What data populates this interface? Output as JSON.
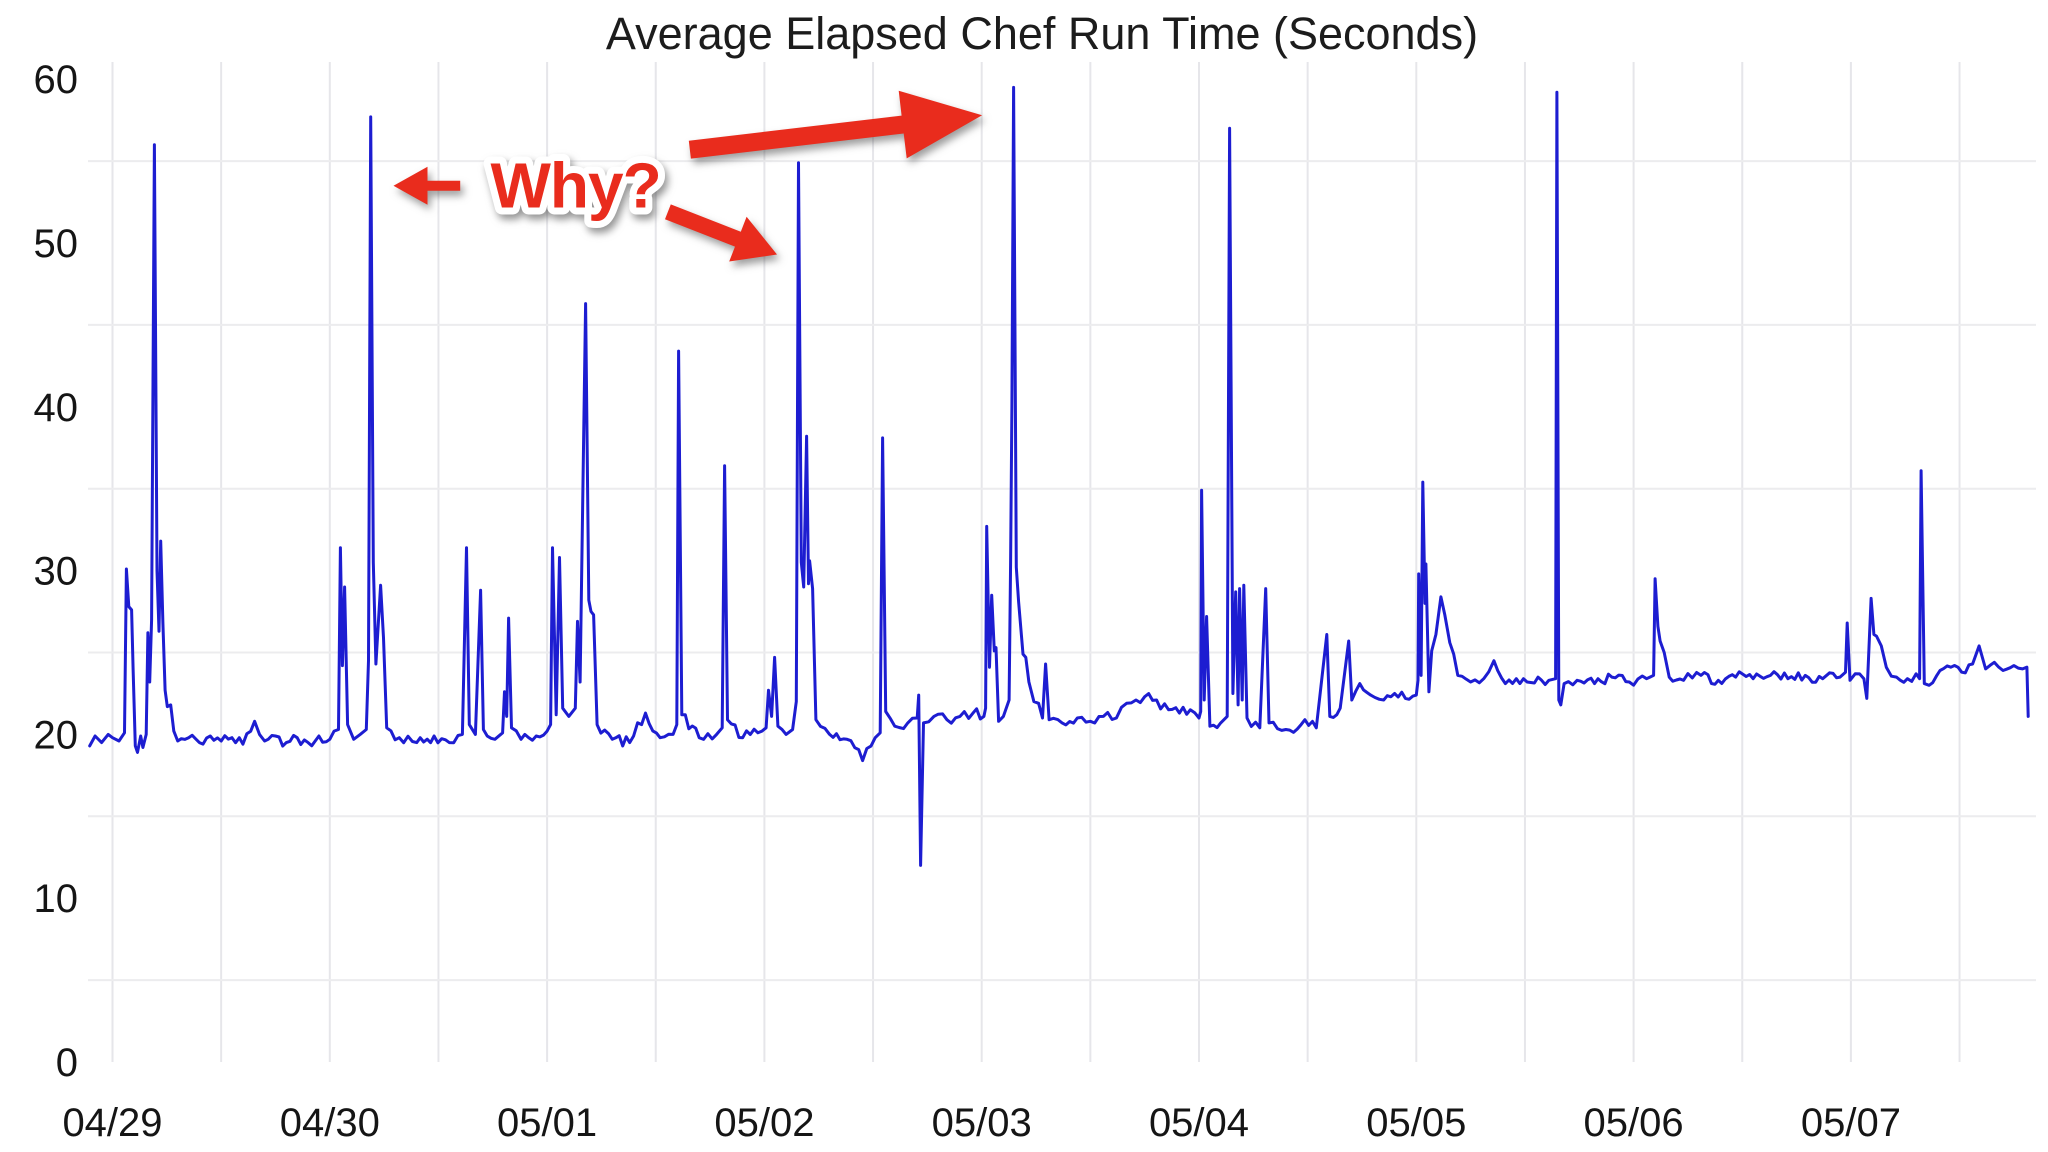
{
  "chart_data": {
    "type": "line",
    "title": "Average Elapsed Chef Run Time (Seconds)",
    "ylabel": "",
    "xlabel": "",
    "ylim": [
      0,
      60
    ],
    "y_ticks": [
      0,
      10,
      20,
      30,
      40,
      50,
      60
    ],
    "y_gridlines_at": [
      5,
      15,
      25,
      35,
      45,
      55
    ],
    "x_tick_labels": [
      "04/29",
      "04/30",
      "05/01",
      "05/02",
      "05/03",
      "05/04",
      "05/05",
      "05/06",
      "05/07"
    ],
    "x_tick_days": [
      0,
      1,
      2,
      3,
      4,
      5,
      6,
      7,
      8
    ],
    "x_minor_grid_step_days": 0.5,
    "x_range_days": [
      -0.105,
      8.82
    ],
    "grid": "on",
    "legend_position": "none",
    "series": [
      {
        "name": "average-elapsed-chef-run-time",
        "color": "#1d1dd1",
        "points": [
          [
            -0.105,
            19.3
          ],
          [
            -0.08,
            19.9
          ],
          [
            -0.05,
            19.5
          ],
          [
            -0.02,
            20.0
          ],
          [
            0.0,
            19.8
          ],
          [
            0.03,
            19.6
          ],
          [
            0.055,
            20.1
          ],
          [
            0.064,
            30.1
          ],
          [
            0.075,
            27.8
          ],
          [
            0.088,
            27.6
          ],
          [
            0.095,
            24.0
          ],
          [
            0.105,
            19.3
          ],
          [
            0.115,
            18.9
          ],
          [
            0.13,
            19.9
          ],
          [
            0.14,
            19.2
          ],
          [
            0.155,
            20.0
          ],
          [
            0.163,
            26.2
          ],
          [
            0.171,
            23.2
          ],
          [
            0.18,
            27.0
          ],
          [
            0.193,
            56.0
          ],
          [
            0.205,
            30.0
          ],
          [
            0.214,
            26.3
          ],
          [
            0.222,
            31.8
          ],
          [
            0.232,
            26.8
          ],
          [
            0.242,
            22.7
          ],
          [
            0.252,
            21.7
          ],
          [
            0.268,
            21.8
          ],
          [
            0.282,
            20.2
          ],
          [
            0.3,
            19.6
          ],
          [
            0.35,
            19.8
          ],
          [
            0.4,
            19.5
          ],
          [
            0.45,
            19.9
          ],
          [
            0.5,
            19.6
          ],
          [
            0.55,
            19.8
          ],
          [
            0.6,
            19.4
          ],
          [
            0.654,
            20.8
          ],
          [
            0.7,
            19.6
          ],
          [
            0.75,
            19.9
          ],
          [
            0.8,
            19.5
          ],
          [
            0.85,
            19.8
          ],
          [
            0.9,
            19.5
          ],
          [
            0.95,
            19.9
          ],
          [
            1.0,
            19.7
          ],
          [
            1.04,
            20.3
          ],
          [
            1.049,
            31.4
          ],
          [
            1.058,
            24.2
          ],
          [
            1.068,
            29.0
          ],
          [
            1.082,
            20.6
          ],
          [
            1.11,
            19.7
          ],
          [
            1.14,
            20.0
          ],
          [
            1.168,
            20.3
          ],
          [
            1.178,
            24.5
          ],
          [
            1.188,
            57.7
          ],
          [
            1.2,
            30.5
          ],
          [
            1.212,
            24.3
          ],
          [
            1.234,
            29.1
          ],
          [
            1.247,
            25.9
          ],
          [
            1.262,
            20.4
          ],
          [
            1.32,
            19.8
          ],
          [
            1.4,
            19.5
          ],
          [
            1.48,
            19.9
          ],
          [
            1.55,
            19.5
          ],
          [
            1.61,
            20.0
          ],
          [
            1.629,
            31.4
          ],
          [
            1.642,
            20.6
          ],
          [
            1.67,
            20.0
          ],
          [
            1.694,
            28.8
          ],
          [
            1.707,
            20.3
          ],
          [
            1.76,
            19.7
          ],
          [
            1.795,
            20.1
          ],
          [
            1.804,
            22.6
          ],
          [
            1.814,
            21.1
          ],
          [
            1.823,
            27.1
          ],
          [
            1.836,
            20.4
          ],
          [
            1.88,
            19.7
          ],
          [
            1.95,
            19.9
          ],
          [
            2.0,
            20.2
          ],
          [
            2.016,
            20.6
          ],
          [
            2.025,
            31.4
          ],
          [
            2.042,
            21.2
          ],
          [
            2.057,
            30.8
          ],
          [
            2.072,
            21.6
          ],
          [
            2.1,
            21.1
          ],
          [
            2.13,
            21.6
          ],
          [
            2.14,
            26.9
          ],
          [
            2.152,
            23.2
          ],
          [
            2.177,
            46.3
          ],
          [
            2.192,
            28.2
          ],
          [
            2.202,
            27.5
          ],
          [
            2.214,
            27.3
          ],
          [
            2.23,
            20.6
          ],
          [
            2.3,
            19.7
          ],
          [
            2.38,
            19.5
          ],
          [
            2.453,
            21.3
          ],
          [
            2.52,
            19.8
          ],
          [
            2.58,
            20.0
          ],
          [
            2.597,
            20.6
          ],
          [
            2.605,
            43.4
          ],
          [
            2.62,
            21.2
          ],
          [
            2.7,
            19.8
          ],
          [
            2.78,
            20.0
          ],
          [
            2.806,
            20.4
          ],
          [
            2.817,
            36.4
          ],
          [
            2.83,
            20.9
          ],
          [
            2.9,
            19.8
          ],
          [
            2.97,
            20.1
          ],
          [
            3.008,
            20.4
          ],
          [
            3.019,
            22.7
          ],
          [
            3.033,
            21.1
          ],
          [
            3.047,
            24.7
          ],
          [
            3.062,
            20.5
          ],
          [
            3.1,
            20.0
          ],
          [
            3.13,
            20.3
          ],
          [
            3.147,
            22.0
          ],
          [
            3.157,
            54.9
          ],
          [
            3.17,
            30.5
          ],
          [
            3.181,
            29.0
          ],
          [
            3.194,
            38.2
          ],
          [
            3.203,
            29.2
          ],
          [
            3.208,
            30.6
          ],
          [
            3.222,
            28.9
          ],
          [
            3.237,
            20.9
          ],
          [
            3.3,
            20.0
          ],
          [
            3.38,
            19.7
          ],
          [
            3.452,
            18.4
          ],
          [
            3.51,
            19.8
          ],
          [
            3.533,
            20.1
          ],
          [
            3.544,
            38.1
          ],
          [
            3.558,
            21.4
          ],
          [
            3.6,
            20.5
          ],
          [
            3.66,
            20.7
          ],
          [
            3.703,
            21.0
          ],
          [
            3.71,
            22.4
          ],
          [
            3.719,
            12.0
          ],
          [
            3.732,
            20.7
          ],
          [
            3.78,
            21.1
          ],
          [
            3.84,
            20.9
          ],
          [
            3.9,
            21.1
          ],
          [
            3.96,
            21.3
          ],
          [
            4.01,
            21.1
          ],
          [
            4.018,
            21.6
          ],
          [
            4.023,
            32.7
          ],
          [
            4.036,
            24.1
          ],
          [
            4.046,
            28.5
          ],
          [
            4.058,
            25.1
          ],
          [
            4.066,
            25.3
          ],
          [
            4.078,
            20.8
          ],
          [
            4.1,
            21.1
          ],
          [
            4.126,
            22.1
          ],
          [
            4.133,
            30.5
          ],
          [
            4.139,
            40.0
          ],
          [
            4.147,
            59.5
          ],
          [
            4.159,
            30.2
          ],
          [
            4.17,
            28.1
          ],
          [
            4.19,
            24.9
          ],
          [
            4.203,
            24.7
          ],
          [
            4.217,
            23.2
          ],
          [
            4.24,
            22.0
          ],
          [
            4.262,
            21.9
          ],
          [
            4.28,
            21.0
          ],
          [
            4.294,
            24.3
          ],
          [
            4.31,
            20.9
          ],
          [
            4.37,
            20.7
          ],
          [
            4.44,
            21.0
          ],
          [
            4.5,
            20.8
          ],
          [
            4.56,
            21.1
          ],
          [
            4.62,
            21.0
          ],
          [
            4.667,
            21.9
          ],
          [
            4.71,
            22.1
          ],
          [
            4.75,
            22.3
          ],
          [
            4.805,
            22.1
          ],
          [
            4.86,
            21.5
          ],
          [
            4.91,
            21.3
          ],
          [
            4.96,
            21.5
          ],
          [
            5.0,
            21.0
          ],
          [
            5.008,
            21.4
          ],
          [
            5.012,
            34.9
          ],
          [
            5.024,
            22.1
          ],
          [
            5.035,
            27.2
          ],
          [
            5.05,
            20.5
          ],
          [
            5.1,
            20.7
          ],
          [
            5.13,
            21.1
          ],
          [
            5.141,
            57.0
          ],
          [
            5.156,
            22.5
          ],
          [
            5.169,
            28.7
          ],
          [
            5.18,
            21.8
          ],
          [
            5.187,
            28.9
          ],
          [
            5.199,
            22.1
          ],
          [
            5.206,
            29.1
          ],
          [
            5.221,
            21.0
          ],
          [
            5.28,
            20.4
          ],
          [
            5.307,
            28.9
          ],
          [
            5.322,
            20.7
          ],
          [
            5.4,
            20.3
          ],
          [
            5.47,
            20.6
          ],
          [
            5.54,
            20.4
          ],
          [
            5.588,
            26.1
          ],
          [
            5.602,
            21.1
          ],
          [
            5.65,
            21.6
          ],
          [
            5.689,
            25.7
          ],
          [
            5.703,
            22.1
          ],
          [
            5.74,
            23.1
          ],
          [
            5.79,
            22.4
          ],
          [
            5.85,
            22.1
          ],
          [
            5.9,
            22.5
          ],
          [
            5.95,
            22.2
          ],
          [
            6.0,
            22.4
          ],
          [
            6.008,
            23.3
          ],
          [
            6.011,
            29.8
          ],
          [
            6.022,
            23.6
          ],
          [
            6.03,
            35.4
          ],
          [
            6.04,
            28.0
          ],
          [
            6.044,
            30.4
          ],
          [
            6.058,
            22.6
          ],
          [
            6.071,
            25.1
          ],
          [
            6.09,
            26.1
          ],
          [
            6.113,
            28.4
          ],
          [
            6.131,
            27.3
          ],
          [
            6.154,
            25.6
          ],
          [
            6.172,
            24.9
          ],
          [
            6.191,
            23.6
          ],
          [
            6.25,
            23.2
          ],
          [
            6.31,
            23.4
          ],
          [
            6.357,
            24.5
          ],
          [
            6.41,
            23.1
          ],
          [
            6.46,
            23.4
          ],
          [
            6.51,
            23.2
          ],
          [
            6.56,
            23.5
          ],
          [
            6.61,
            23.3
          ],
          [
            6.641,
            23.4
          ],
          [
            6.647,
            59.2
          ],
          [
            6.656,
            22.1
          ],
          [
            6.665,
            21.8
          ],
          [
            6.68,
            23.1
          ],
          [
            6.74,
            23.3
          ],
          [
            6.82,
            23.1
          ],
          [
            6.9,
            23.5
          ],
          [
            6.98,
            23.2
          ],
          [
            7.06,
            23.4
          ],
          [
            7.092,
            23.6
          ],
          [
            7.099,
            29.5
          ],
          [
            7.112,
            26.6
          ],
          [
            7.122,
            25.7
          ],
          [
            7.141,
            25.0
          ],
          [
            7.164,
            23.5
          ],
          [
            7.23,
            23.3
          ],
          [
            7.31,
            23.6
          ],
          [
            7.39,
            23.3
          ],
          [
            7.47,
            23.5
          ],
          [
            7.55,
            23.4
          ],
          [
            7.63,
            23.6
          ],
          [
            7.71,
            23.4
          ],
          [
            7.79,
            23.6
          ],
          [
            7.87,
            23.4
          ],
          [
            7.95,
            23.5
          ],
          [
            7.975,
            23.8
          ],
          [
            7.983,
            26.8
          ],
          [
            7.996,
            23.3
          ],
          [
            8.02,
            23.7
          ],
          [
            8.06,
            23.4
          ],
          [
            8.073,
            22.2
          ],
          [
            8.093,
            28.3
          ],
          [
            8.106,
            26.1
          ],
          [
            8.118,
            26.0
          ],
          [
            8.14,
            25.4
          ],
          [
            8.163,
            24.1
          ],
          [
            8.21,
            23.5
          ],
          [
            8.26,
            23.4
          ],
          [
            8.3,
            23.7
          ],
          [
            8.316,
            23.4
          ],
          [
            8.323,
            36.1
          ],
          [
            8.338,
            23.1
          ],
          [
            8.36,
            23.0
          ],
          [
            8.41,
            23.9
          ],
          [
            8.46,
            24.1
          ],
          [
            8.51,
            23.8
          ],
          [
            8.56,
            24.3
          ],
          [
            8.59,
            25.4
          ],
          [
            8.62,
            24.0
          ],
          [
            8.66,
            24.4
          ],
          [
            8.7,
            23.9
          ],
          [
            8.75,
            24.2
          ],
          [
            8.79,
            24.0
          ],
          [
            8.81,
            24.1
          ],
          [
            8.816,
            21.1
          ]
        ],
        "baseline_noise_amplitude": 0.35
      }
    ],
    "annotations": {
      "text": {
        "label": "Why?",
        "day": 2.131,
        "value": 53.5,
        "color": "#e92c1d",
        "outline_color": "#ffffff"
      },
      "arrows": [
        {
          "name": "arrow-left",
          "style": "thin",
          "color": "#e92c1d",
          "tail": {
            "day": 1.6,
            "value": 53.5
          },
          "tip": {
            "day": 1.293,
            "value": 53.5
          }
        },
        {
          "name": "arrow-long",
          "style": "long",
          "color": "#e92c1d",
          "tail": {
            "day": 2.657,
            "value": 55.7
          },
          "tip": {
            "day": 4.002,
            "value": 57.8
          }
        },
        {
          "name": "arrow-short",
          "style": "short",
          "color": "#e92c1d",
          "tail": {
            "day": 2.556,
            "value": 51.9
          },
          "tip": {
            "day": 3.058,
            "value": 49.3
          }
        }
      ]
    },
    "colors": {
      "line": "#1d1dd1",
      "grid_vertical": "#e6e6ea",
      "grid_horizontal": "#ececee",
      "tick_text": "#151515",
      "title_text": "#1c1c1c",
      "annotation_red": "#e92c1d",
      "background": "#ffffff"
    }
  }
}
